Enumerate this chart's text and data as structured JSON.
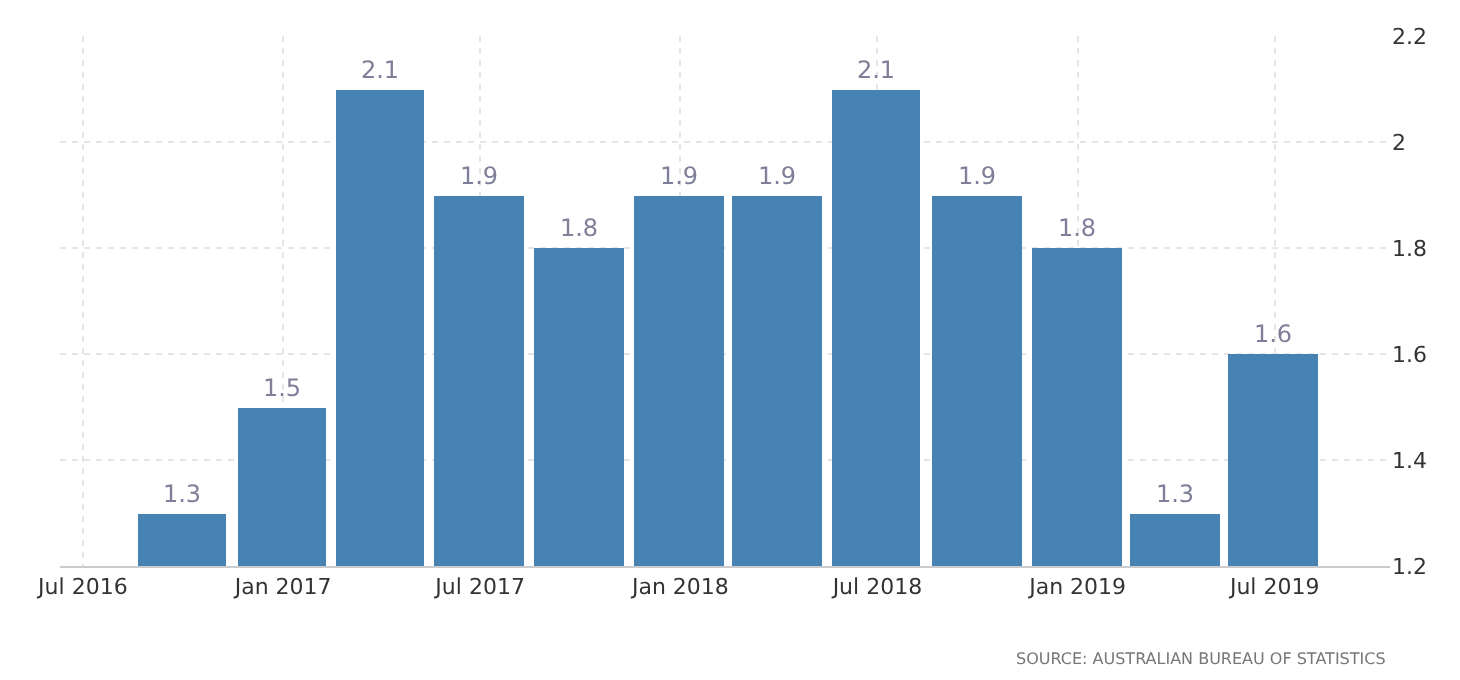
{
  "chart_data": {
    "type": "bar",
    "x": [
      "2016-09-30",
      "2016-12-31",
      "2017-03-31",
      "2017-06-30",
      "2017-09-30",
      "2017-12-31",
      "2018-03-31",
      "2018-06-30",
      "2018-09-30",
      "2018-12-31",
      "2019-03-31",
      "2019-06-30"
    ],
    "values": [
      1.3,
      1.5,
      2.1,
      1.9,
      1.8,
      1.9,
      1.9,
      2.1,
      1.9,
      1.8,
      1.3,
      1.6
    ],
    "color": "#4682b4",
    "data_labels": true,
    "ylim": [
      1.2,
      2.2
    ],
    "yticks": [
      1.2,
      1.4,
      1.6,
      1.8,
      2,
      2.2
    ],
    "xlim": [
      "2016-06-10",
      "2019-10-15"
    ],
    "xticks": [
      {
        "value": "2016-07-01",
        "label": "Jul 2016"
      },
      {
        "value": "2017-01-01",
        "label": "Jan 2017"
      },
      {
        "value": "2017-07-01",
        "label": "Jul 2017"
      },
      {
        "value": "2018-01-01",
        "label": "Jan 2018"
      },
      {
        "value": "2018-07-01",
        "label": "Jul 2018"
      },
      {
        "value": "2019-01-01",
        "label": "Jan 2019"
      },
      {
        "value": "2019-07-01",
        "label": "Jul 2019"
      }
    ],
    "grid": true,
    "annotations": [
      "SOURCE: AUSTRALIAN BUREAU OF STATISTICS"
    ]
  }
}
